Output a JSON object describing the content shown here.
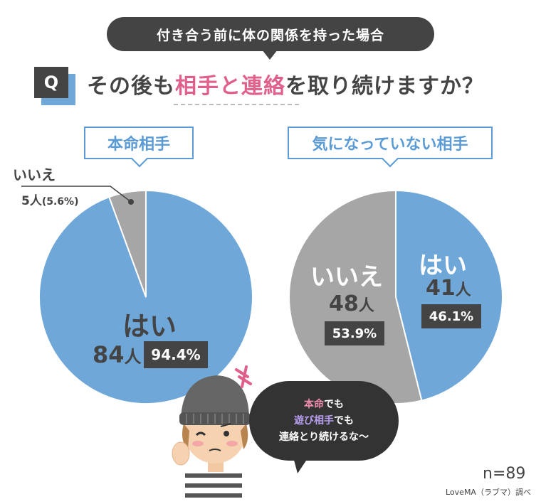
{
  "header": {
    "banner": "付き合う前に体の関係を持った場合",
    "q_mark": "Q",
    "question_pre": "その後も",
    "question_hl": "相手と連絡",
    "question_post": "を取り続けますか？"
  },
  "chart_data": [
    {
      "type": "pie",
      "title": "本命相手",
      "slices": [
        {
          "label": "はい",
          "count": 84,
          "count_unit": "人",
          "percent": 94.4,
          "percent_text": "94.4%",
          "color": "#6fa8d8"
        },
        {
          "label": "いいえ",
          "count": 5,
          "count_unit": "人",
          "percent": 5.6,
          "percent_text": "(5.6%)",
          "color": "#a6a6a6"
        }
      ]
    },
    {
      "type": "pie",
      "title": "気になっていない相手",
      "slices": [
        {
          "label": "はい",
          "count": 41,
          "count_unit": "人",
          "percent": 46.1,
          "percent_text": "46.1%",
          "color": "#6fa8d8"
        },
        {
          "label": "いいえ",
          "count": 48,
          "count_unit": "人",
          "percent": 53.9,
          "percent_text": "53.9%",
          "color": "#a6a6a6"
        }
      ]
    }
  ],
  "speech": {
    "line1_hl": "本命",
    "line1_post": "でも",
    "line2_hl": "遊び相手",
    "line2_post": "でも",
    "line3": "連絡とり続けるな〜"
  },
  "footer": {
    "n": "n=89",
    "source": "LoveMA（ラブマ）調べ"
  },
  "colors": {
    "accent": "#5b9bd5",
    "pink": "#e0608b",
    "dark": "#444444"
  }
}
